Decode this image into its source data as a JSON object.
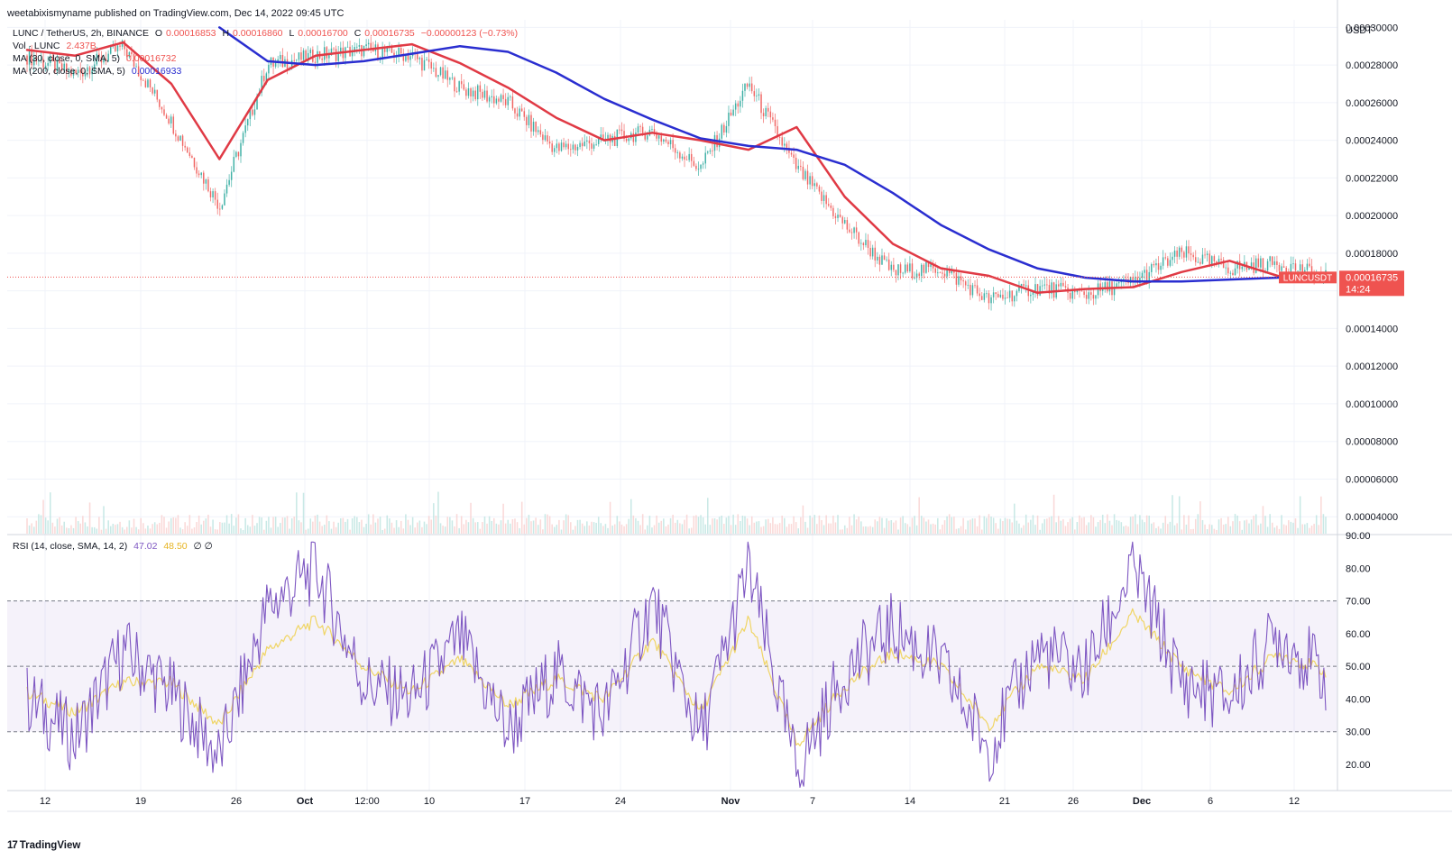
{
  "header": {
    "publish_line": "weetabixismyname published on TradingView.com, Dec 14, 2022 09:45 UTC"
  },
  "legend": {
    "symbol": "LUNC / TetherUS, 2h, BINANCE",
    "o_label": "O",
    "o_value": "0.00016853",
    "h_label": "H",
    "h_value": "0.00016860",
    "l_label": "L",
    "l_value": "0.00016700",
    "c_label": "C",
    "c_value": "0.00016735",
    "change": "−0.00000123 (−0.73%)",
    "vol_label": "Vol · LUNC",
    "vol_value": "2.437B",
    "ma30_label": "MA (30, close, 0, SMA, 5)",
    "ma30_value": "0.00016732",
    "ma200_label": "MA (200, close, 0, SMA, 5)",
    "ma200_value": "0.00016933",
    "rsi_label": "RSI (14, close, SMA, 14, 2)",
    "rsi_value": "47.02",
    "rsi_ma_value": "48.50",
    "rsi_flags": "∅ ∅"
  },
  "footer": {
    "brand": "TradingView",
    "logo": "17"
  },
  "colors": {
    "ma30": "#e03a45",
    "ma200": "#2a2ed0",
    "rsi": "#7e57c2",
    "rsi_ma": "#f0d565",
    "badge": "#ef5350",
    "up": "#26a69a",
    "down": "#ef5350"
  },
  "chart_data": [
    {
      "type": "line",
      "panel": "price",
      "currency": "USDT",
      "yticks": [
        "0.00030000",
        "0.00028000",
        "0.00026000",
        "0.00024000",
        "0.00022000",
        "0.00020000",
        "0.00018000",
        "0.00016000",
        "0.00014000",
        "0.00012000",
        "0.00010000",
        "0.00008000",
        "0.00006000",
        "0.00004000"
      ],
      "ylim": [
        3.1e-05,
        0.000304
      ],
      "xticks": [
        "12",
        "19",
        "26",
        "Oct",
        "12:00",
        "10",
        "17",
        "24",
        "Nov",
        "7",
        "14",
        "21",
        "26",
        "Dec",
        "6",
        "12"
      ],
      "x": [
        "Sep 12",
        "Sep 15",
        "Sep 19",
        "Sep 22",
        "Sep 26",
        "Sep 29",
        "Oct 2",
        "Oct 6",
        "Oct 10",
        "Oct 14",
        "Oct 17",
        "Oct 21",
        "Oct 24",
        "Oct 28",
        "Nov 1",
        "Nov 4",
        "Nov 7",
        "Nov 10",
        "Nov 14",
        "Nov 18",
        "Nov 21",
        "Nov 25",
        "Nov 28",
        "Dec 1",
        "Dec 4",
        "Dec 7",
        "Dec 10",
        "Dec 13"
      ],
      "series": [
        {
          "name": "LUNC / TetherUS",
          "values": [
            0.000285,
            0.000275,
            0.00029,
            0.00025,
            0.000205,
            0.00028,
            0.000285,
            0.000288,
            0.000285,
            0.000268,
            0.00026,
            0.000235,
            0.00024,
            0.000245,
            0.000225,
            0.00027,
            0.000225,
            0.000195,
            0.00017,
            0.000172,
            0.000155,
            0.000162,
            0.000158,
            0.000165,
            0.00018,
            0.000172,
            0.000175,
            0.0001673
          ]
        },
        {
          "name": "MA (30, close, 0, SMA, 5)",
          "values": [
            0.000288,
            0.000285,
            0.000292,
            0.00027,
            0.00023,
            0.000272,
            0.000285,
            0.000288,
            0.000291,
            0.000281,
            0.000268,
            0.000252,
            0.00024,
            0.000244,
            0.00024,
            0.000235,
            0.000247,
            0.00021,
            0.000185,
            0.000172,
            0.000168,
            0.000159,
            0.000161,
            0.000162,
            0.00017,
            0.000176,
            0.000168,
            0.0001673
          ]
        },
        {
          "name": "MA (200, close, 0, SMA, 5)",
          "values": [
            null,
            null,
            null,
            null,
            0.0003,
            0.000282,
            0.00028,
            0.000282,
            0.000286,
            0.00029,
            0.000287,
            0.000276,
            0.000262,
            0.000251,
            0.000241,
            0.000237,
            0.000235,
            0.000227,
            0.000212,
            0.000195,
            0.000182,
            0.000172,
            0.000167,
            0.000165,
            0.000165,
            0.000166,
            0.000167,
            0.0001693
          ]
        }
      ],
      "last_price_label": "LUNCUSDT",
      "last_price": "0.00016735",
      "countdown": "14:24"
    },
    {
      "type": "line",
      "panel": "rsi",
      "yticks": [
        "90.00",
        "80.00",
        "70.00",
        "60.00",
        "50.00",
        "40.00",
        "30.00",
        "20.00"
      ],
      "ylim": [
        12,
        90
      ],
      "bands": [
        70,
        50,
        30
      ],
      "x": [
        "Sep 12",
        "Sep 15",
        "Sep 19",
        "Sep 22",
        "Sep 26",
        "Sep 29",
        "Oct 2",
        "Oct 6",
        "Oct 10",
        "Oct 14",
        "Oct 17",
        "Oct 21",
        "Oct 24",
        "Oct 28",
        "Nov 1",
        "Nov 4",
        "Nov 7",
        "Nov 10",
        "Nov 14",
        "Nov 18",
        "Nov 21",
        "Nov 25",
        "Nov 28",
        "Dec 1",
        "Dec 4",
        "Dec 7",
        "Dec 10",
        "Dec 13"
      ],
      "series": [
        {
          "name": "RSI",
          "values": [
            40,
            28,
            55,
            42,
            22,
            68,
            80,
            45,
            40,
            58,
            30,
            48,
            35,
            70,
            28,
            80,
            18,
            48,
            62,
            50,
            25,
            55,
            48,
            80,
            45,
            40,
            60,
            47
          ]
        },
        {
          "name": "RSI-based MA",
          "values": [
            42,
            36,
            45,
            45,
            32,
            55,
            64,
            50,
            42,
            52,
            38,
            46,
            40,
            58,
            36,
            64,
            26,
            44,
            54,
            50,
            32,
            50,
            46,
            66,
            50,
            42,
            54,
            48.5
          ]
        }
      ]
    }
  ]
}
